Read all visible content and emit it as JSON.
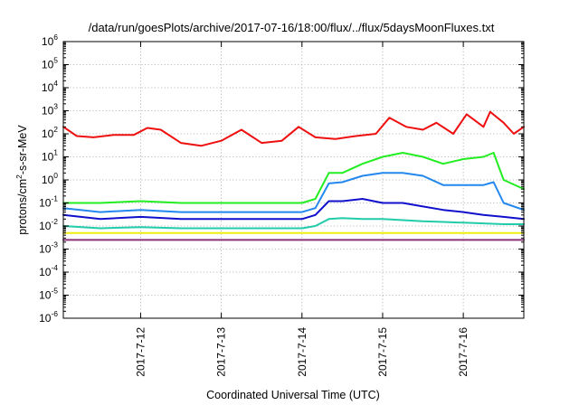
{
  "chart_data": {
    "type": "line",
    "title": "/data/run/goesPlots/archive/2017-07-16/18:00/flux/../flux/5daysMoonFluxes.txt",
    "xlabel": "Coordinated Universal Time (UTC)",
    "ylabel_parts": [
      "protons/cm",
      "2",
      "-s-sr-MeV"
    ],
    "x_tick_labels": [
      "2017-7-12",
      "2017-7-13",
      "2017-7-14",
      "2017-7-15",
      "2017-7-16"
    ],
    "xlim": [
      "2017-07-11 01:00",
      "2017-07-16 18:00"
    ],
    "y_scale": "log",
    "ylim": [
      1e-06,
      1000000.0
    ],
    "y_tick_labels": [
      {
        "base": "10",
        "exp": "-6"
      },
      {
        "base": "10",
        "exp": "-5"
      },
      {
        "base": "10",
        "exp": "-4"
      },
      {
        "base": "10",
        "exp": "-3"
      },
      {
        "base": "10",
        "exp": "-2"
      },
      {
        "base": "10",
        "exp": "-1"
      },
      {
        "base": "10",
        "exp": "0"
      },
      {
        "base": "10",
        "exp": "1"
      },
      {
        "base": "10",
        "exp": "2"
      },
      {
        "base": "10",
        "exp": "3"
      },
      {
        "base": "10",
        "exp": "4"
      },
      {
        "base": "10",
        "exp": "5"
      },
      {
        "base": "10",
        "exp": "6"
      }
    ],
    "grid": true,
    "series": [
      {
        "color": "#ee1010",
        "points": [
          [
            "2017-07-11 01:00",
            200
          ],
          [
            "2017-07-11 05:00",
            80
          ],
          [
            "2017-07-11 10:00",
            70
          ],
          [
            "2017-07-11 16:00",
            90
          ],
          [
            "2017-07-11 22:00",
            90
          ],
          [
            "2017-07-12 02:00",
            180
          ],
          [
            "2017-07-12 06:00",
            150
          ],
          [
            "2017-07-12 12:00",
            40
          ],
          [
            "2017-07-12 18:00",
            30
          ],
          [
            "2017-07-13 00:00",
            50
          ],
          [
            "2017-07-13 06:00",
            150
          ],
          [
            "2017-07-13 12:00",
            40
          ],
          [
            "2017-07-13 18:00",
            50
          ],
          [
            "2017-07-13 23:00",
            200
          ],
          [
            "2017-07-14 04:00",
            70
          ],
          [
            "2017-07-14 10:00",
            60
          ],
          [
            "2017-07-14 16:00",
            80
          ],
          [
            "2017-07-14 22:00",
            100
          ],
          [
            "2017-07-15 02:00",
            500
          ],
          [
            "2017-07-15 07:00",
            200
          ],
          [
            "2017-07-15 12:00",
            150
          ],
          [
            "2017-07-15 16:00",
            300
          ],
          [
            "2017-07-15 21:00",
            100
          ],
          [
            "2017-07-16 01:00",
            700
          ],
          [
            "2017-07-16 06:00",
            200
          ],
          [
            "2017-07-16 08:00",
            900
          ],
          [
            "2017-07-16 12:00",
            300
          ],
          [
            "2017-07-16 15:00",
            100
          ],
          [
            "2017-07-16 18:00",
            200
          ]
        ]
      },
      {
        "color": "#22ee22",
        "points": [
          [
            "2017-07-11 01:00",
            0.1
          ],
          [
            "2017-07-11 12:00",
            0.1
          ],
          [
            "2017-07-12 00:00",
            0.12
          ],
          [
            "2017-07-12 12:00",
            0.1
          ],
          [
            "2017-07-13 00:00",
            0.1
          ],
          [
            "2017-07-13 12:00",
            0.1
          ],
          [
            "2017-07-14 00:00",
            0.1
          ],
          [
            "2017-07-14 04:00",
            0.15
          ],
          [
            "2017-07-14 08:00",
            2
          ],
          [
            "2017-07-14 12:00",
            2
          ],
          [
            "2017-07-14 18:00",
            5
          ],
          [
            "2017-07-15 00:00",
            10
          ],
          [
            "2017-07-15 06:00",
            15
          ],
          [
            "2017-07-15 12:00",
            10
          ],
          [
            "2017-07-15 18:00",
            5
          ],
          [
            "2017-07-16 00:00",
            8
          ],
          [
            "2017-07-16 06:00",
            10
          ],
          [
            "2017-07-16 09:00",
            15
          ],
          [
            "2017-07-16 12:00",
            1
          ],
          [
            "2017-07-16 18:00",
            0.4
          ]
        ]
      },
      {
        "color": "#2288ee",
        "points": [
          [
            "2017-07-11 01:00",
            0.06
          ],
          [
            "2017-07-11 12:00",
            0.04
          ],
          [
            "2017-07-12 00:00",
            0.05
          ],
          [
            "2017-07-12 12:00",
            0.04
          ],
          [
            "2017-07-13 00:00",
            0.04
          ],
          [
            "2017-07-13 12:00",
            0.04
          ],
          [
            "2017-07-14 00:00",
            0.04
          ],
          [
            "2017-07-14 04:00",
            0.06
          ],
          [
            "2017-07-14 08:00",
            0.7
          ],
          [
            "2017-07-14 12:00",
            0.8
          ],
          [
            "2017-07-14 18:00",
            1.5
          ],
          [
            "2017-07-15 00:00",
            2
          ],
          [
            "2017-07-15 06:00",
            2
          ],
          [
            "2017-07-15 12:00",
            1.5
          ],
          [
            "2017-07-15 18:00",
            0.6
          ],
          [
            "2017-07-16 00:00",
            0.6
          ],
          [
            "2017-07-16 06:00",
            0.6
          ],
          [
            "2017-07-16 09:00",
            0.8
          ],
          [
            "2017-07-16 12:00",
            0.1
          ],
          [
            "2017-07-16 18:00",
            0.05
          ]
        ]
      },
      {
        "color": "#1010cc",
        "points": [
          [
            "2017-07-11 01:00",
            0.03
          ],
          [
            "2017-07-11 12:00",
            0.02
          ],
          [
            "2017-07-12 00:00",
            0.025
          ],
          [
            "2017-07-12 12:00",
            0.02
          ],
          [
            "2017-07-13 00:00",
            0.02
          ],
          [
            "2017-07-13 12:00",
            0.02
          ],
          [
            "2017-07-14 00:00",
            0.02
          ],
          [
            "2017-07-14 04:00",
            0.03
          ],
          [
            "2017-07-14 08:00",
            0.12
          ],
          [
            "2017-07-14 12:00",
            0.12
          ],
          [
            "2017-07-14 18:00",
            0.15
          ],
          [
            "2017-07-15 00:00",
            0.1
          ],
          [
            "2017-07-15 06:00",
            0.1
          ],
          [
            "2017-07-15 12:00",
            0.07
          ],
          [
            "2017-07-15 18:00",
            0.05
          ],
          [
            "2017-07-16 00:00",
            0.04
          ],
          [
            "2017-07-16 06:00",
            0.03
          ],
          [
            "2017-07-16 12:00",
            0.025
          ],
          [
            "2017-07-16 18:00",
            0.02
          ]
        ]
      },
      {
        "color": "#22ccaa",
        "points": [
          [
            "2017-07-11 01:00",
            0.01
          ],
          [
            "2017-07-11 12:00",
            0.008
          ],
          [
            "2017-07-12 00:00",
            0.009
          ],
          [
            "2017-07-12 12:00",
            0.008
          ],
          [
            "2017-07-13 00:00",
            0.008
          ],
          [
            "2017-07-13 12:00",
            0.008
          ],
          [
            "2017-07-14 00:00",
            0.008
          ],
          [
            "2017-07-14 04:00",
            0.01
          ],
          [
            "2017-07-14 08:00",
            0.02
          ],
          [
            "2017-07-14 12:00",
            0.022
          ],
          [
            "2017-07-14 18:00",
            0.02
          ],
          [
            "2017-07-15 00:00",
            0.02
          ],
          [
            "2017-07-15 06:00",
            0.018
          ],
          [
            "2017-07-15 12:00",
            0.016
          ],
          [
            "2017-07-15 18:00",
            0.015
          ],
          [
            "2017-07-16 00:00",
            0.014
          ],
          [
            "2017-07-16 06:00",
            0.013
          ],
          [
            "2017-07-16 12:00",
            0.012
          ],
          [
            "2017-07-16 18:00",
            0.012
          ]
        ]
      },
      {
        "color": "#eeee11",
        "points": [
          [
            "2017-07-11 01:00",
            0.005
          ],
          [
            "2017-07-12 00:00",
            0.005
          ],
          [
            "2017-07-13 00:00",
            0.005
          ],
          [
            "2017-07-14 00:00",
            0.005
          ],
          [
            "2017-07-15 00:00",
            0.005
          ],
          [
            "2017-07-16 00:00",
            0.005
          ],
          [
            "2017-07-16 18:00",
            0.005
          ]
        ]
      },
      {
        "color": "#883377",
        "points": [
          [
            "2017-07-11 01:00",
            0.0025
          ],
          [
            "2017-07-12 00:00",
            0.0025
          ],
          [
            "2017-07-13 00:00",
            0.0025
          ],
          [
            "2017-07-14 00:00",
            0.0025
          ],
          [
            "2017-07-15 00:00",
            0.0025
          ],
          [
            "2017-07-16 00:00",
            0.0025
          ],
          [
            "2017-07-16 18:00",
            0.0025
          ]
        ]
      }
    ]
  }
}
